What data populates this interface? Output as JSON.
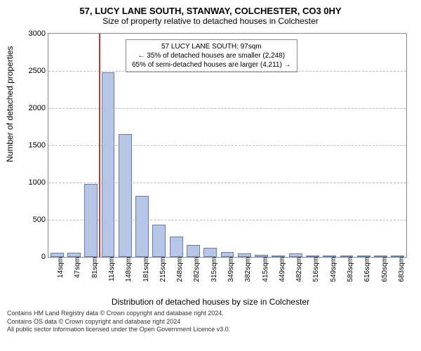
{
  "title_line1": "57, LUCY LANE SOUTH, STANWAY, COLCHESTER, CO3 0HY",
  "title_line2": "Size of property relative to detached houses in Colchester",
  "ylabel": "Number of detached properties",
  "xlabel": "Distribution of detached houses by size in Colchester",
  "info": {
    "line1": "57 LUCY LANE SOUTH: 97sqm",
    "line2": "← 35% of detached houses are smaller (2,248)",
    "line3": "65% of semi-detached houses are larger (4,211) →"
  },
  "footer_line1": "Contains HM Land Registry data © Crown copyright and database right 2024.",
  "footer_line2": "Contains OS data © Crown copyright and database right 2024",
  "footer_line3": "All public sector information licensed under the Open Government Licence v3.0.",
  "chart": {
    "type": "histogram",
    "ylim": [
      0,
      3000
    ],
    "ytick_step": 500,
    "bar_fill": "#b7c5e7",
    "bar_border": "#6a7da8",
    "grid_color": "#bbbbbb",
    "background_color": "#ffffff",
    "marker_value": 97,
    "marker_color": "#cc3333",
    "x_categories": [
      "14sqm",
      "47sqm",
      "81sqm",
      "114sqm",
      "148sqm",
      "181sqm",
      "215sqm",
      "248sqm",
      "282sqm",
      "315sqm",
      "349sqm",
      "382sqm",
      "415sqm",
      "449sqm",
      "482sqm",
      "516sqm",
      "549sqm",
      "583sqm",
      "616sqm",
      "650sqm",
      "683sqm"
    ],
    "values": [
      60,
      60,
      980,
      2480,
      1650,
      820,
      430,
      270,
      160,
      120,
      70,
      50,
      30,
      15,
      50,
      10,
      8,
      6,
      4,
      2,
      2
    ],
    "title_fontsize": 13,
    "label_fontsize": 12,
    "tick_fontsize": 11
  }
}
